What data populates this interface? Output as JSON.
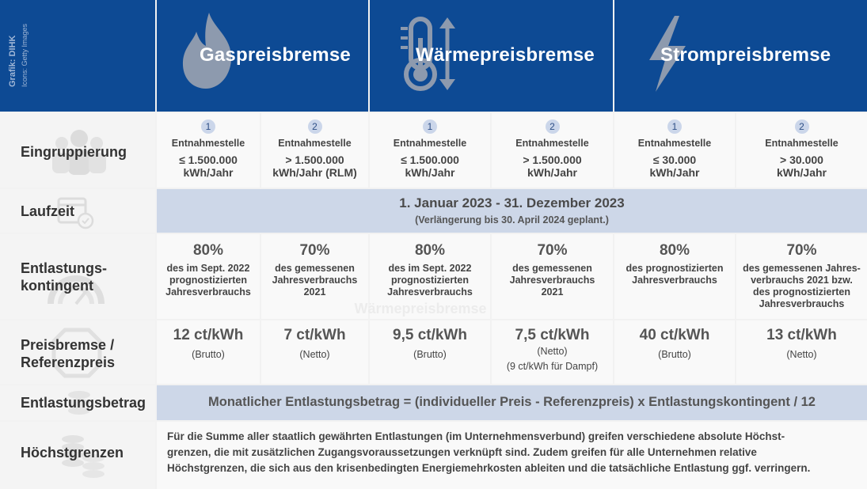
{
  "credit": {
    "line1": "Grafik: DIHK",
    "line2": "Icons: Getty Images"
  },
  "icons": {
    "gas": "flame-icon",
    "heat": "thermometer-icon",
    "power": "lightning-icon",
    "group": "people-group-icon",
    "calendar": "calendar-icon",
    "meter": "gauge-icon",
    "coins": "coins-icon"
  },
  "colors": {
    "header": "#0d4a94",
    "band": "#cdd7e8",
    "number_badge": "#cbd6ea"
  },
  "header": {
    "gas": "Gaspreisbremse",
    "heat": "Wärmepreisbremse",
    "power": "Strompreisbremse"
  },
  "rows": {
    "grouping": {
      "label": "Eingruppierung",
      "cells": [
        {
          "num": "1",
          "line1": "Entnahmestelle",
          "line2": "≤ 1.500.000",
          "line3": "kWh/Jahr"
        },
        {
          "num": "2",
          "line1": "Entnahmestelle",
          "line2": "> 1.500.000",
          "line3": "kWh/Jahr (RLM)"
        },
        {
          "num": "1",
          "line1": "Entnahmestelle",
          "line2": "≤ 1.500.000",
          "line3": "kWh/Jahr"
        },
        {
          "num": "2",
          "line1": "Entnahmestelle",
          "line2": "> 1.500.000",
          "line3": "kWh/Jahr"
        },
        {
          "num": "1",
          "line1": "Entnahmestelle",
          "line2": "≤ 30.000",
          "line3": "kWh/Jahr"
        },
        {
          "num": "2",
          "line1": "Entnahmestelle",
          "line2": "> 30.000",
          "line3": "kWh/Jahr"
        }
      ]
    },
    "runtime": {
      "label": "Laufzeit",
      "main": "1. Januar 2023 - 31. Dezember 2023",
      "sub": "(Verlängerung bis 30. April 2024 geplant.)"
    },
    "contingent": {
      "label1": "Entlastungs-",
      "label2": "kontingent",
      "cells": [
        {
          "pct": "80%",
          "lines": [
            "des im Sept. 2022",
            "prognostizierten",
            "Jahresverbrauchs"
          ]
        },
        {
          "pct": "70%",
          "lines": [
            "des gemessenen",
            "Jahresverbrauchs",
            "2021"
          ]
        },
        {
          "pct": "80%",
          "lines": [
            "des im Sept. 2022",
            "prognostizierten",
            "Jahresverbrauchs"
          ]
        },
        {
          "pct": "70%",
          "lines": [
            "des gemessenen",
            "Jahresverbrauchs",
            "2021"
          ]
        },
        {
          "pct": "80%",
          "lines": [
            "des prognostizierten",
            "Jahresverbrauchs",
            ""
          ]
        },
        {
          "pct": "70%",
          "lines": [
            "des gemessenen Jahres-",
            "verbrauchs 2021 bzw.",
            "des prognostizierten",
            "Jahresverbrauchs"
          ]
        }
      ]
    },
    "price": {
      "label1": "Preisbremse /",
      "label2": "Referenzpreis",
      "cells": [
        {
          "price": "12 ct/kWh",
          "note": "(Brutto)",
          "extra": ""
        },
        {
          "price": "7 ct/kWh",
          "note": "(Netto)",
          "extra": ""
        },
        {
          "price": "9,5 ct/kWh",
          "note": "(Brutto)",
          "extra": ""
        },
        {
          "price": "7,5 ct/kWh",
          "note": "(Netto)",
          "extra": "(9 ct/kWh für Dampf)"
        },
        {
          "price": "40 ct/kWh",
          "note": "(Brutto)",
          "extra": ""
        },
        {
          "price": "13 ct/kWh",
          "note": "(Netto)",
          "extra": ""
        }
      ]
    },
    "relief": {
      "label": "Entlastungsbetrag",
      "formula": "Monatlicher Entlastungsbetrag = (individueller Preis - Referenzpreis) x Entlastungskontingent / 12"
    },
    "caps": {
      "label": "Höchstgrenzen",
      "line1": "Für die Summe aller staatlich gewährten Entlastungen (im Unternehmensverbund) greifen verschiedene absolute Höchst-",
      "line2": "grenzen, die mit zusätzlichen Zugangsvoraussetzungen verknüpft sind. Zudem greifen für alle Unternehmen relative",
      "line3": "Höchstgrenzen, die sich aus den krisenbedingten Energiemehrkosten ableiten und die tatsächliche Entlastung ggf. verringern."
    }
  }
}
